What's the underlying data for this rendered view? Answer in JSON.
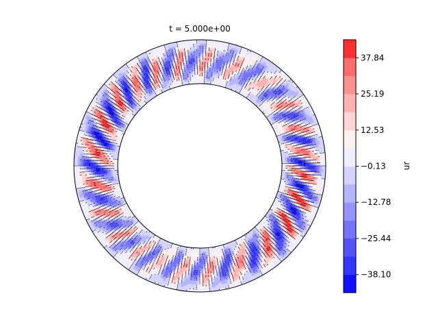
{
  "chart_data": {
    "type": "heatmap",
    "subtype": "annular filled contour (polar field)",
    "title": "t = 5.000e+00",
    "colorbar": {
      "label": "ur",
      "ticks": [
        "37.84",
        "25.19",
        "12.53",
        "−0.13",
        "−12.78",
        "−25.44",
        "−38.10"
      ],
      "tick_values": [
        37.84,
        25.19,
        12.53,
        -0.13,
        -12.78,
        -25.44,
        -38.1
      ],
      "levels": [
        -44.43,
        -38.1,
        -31.77,
        -25.44,
        -19.11,
        -12.78,
        -6.46,
        -0.13,
        6.2,
        12.53,
        18.86,
        25.19,
        31.52,
        37.84,
        44.17
      ],
      "colors": [
        "#1010ff",
        "#3434ff",
        "#5252ff",
        "#7474ff",
        "#9494ff",
        "#b4b4ff",
        "#d4d4ff",
        "#eeeeff",
        "#fff0f0",
        "#ffd4d4",
        "#ffb2b2",
        "#ff9090",
        "#ff6c6c",
        "#ff3030",
        "#ff1212"
      ],
      "cmap": "bwr"
    },
    "field": {
      "domain": "annulus",
      "radius_ratio_inner_outer": 0.65,
      "n_radial_cells": 24,
      "n_angular_cells": 240,
      "cells_per_angular_mode": 10,
      "value_range": [
        -44,
        44
      ]
    },
    "grid": false
  }
}
